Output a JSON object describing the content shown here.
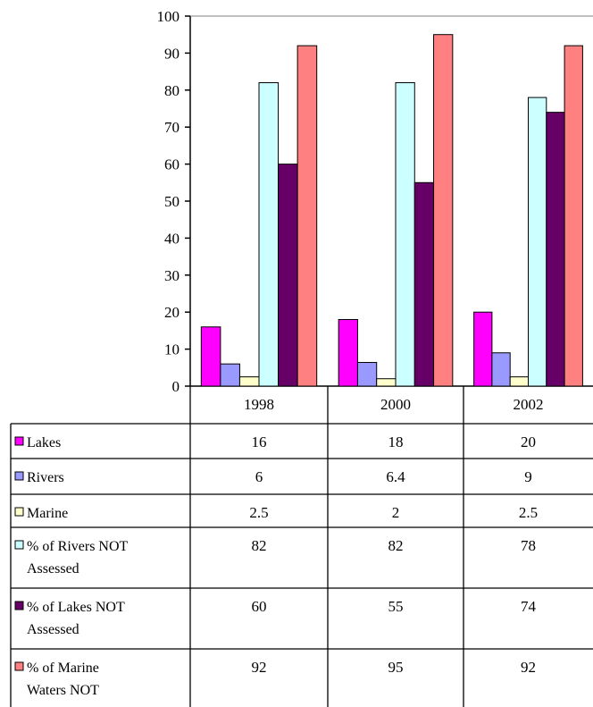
{
  "chart_data": {
    "type": "bar",
    "categories": [
      "1998",
      "2000",
      "2002"
    ],
    "ylim": [
      0,
      100
    ],
    "yticks": [
      0,
      10,
      20,
      30,
      40,
      50,
      60,
      70,
      80,
      90,
      100
    ],
    "grid": false,
    "legend_placement": "data-table-left",
    "series": [
      {
        "name": "Lakes",
        "color": "#ff00ff",
        "values": [
          16,
          18,
          20
        ],
        "labels": [
          "16",
          "18",
          "20"
        ]
      },
      {
        "name": "Rivers",
        "color": "#9999ff",
        "values": [
          6,
          6.4,
          9
        ],
        "labels": [
          "6",
          "6.4",
          "9"
        ]
      },
      {
        "name": "Marine",
        "color": "#ffffcc",
        "values": [
          2.5,
          2,
          2.5
        ],
        "labels": [
          "2.5",
          "2",
          "2.5"
        ]
      },
      {
        "name": "% of Rivers NOT Assessed",
        "name_lines": [
          "% of Rivers NOT",
          "Assessed"
        ],
        "color": "#ccffff",
        "values": [
          82,
          82,
          78
        ],
        "labels": [
          "82",
          "82",
          "78"
        ]
      },
      {
        "name": "% of Lakes NOT Assessed",
        "name_lines": [
          "% of Lakes NOT",
          "Assessed"
        ],
        "color": "#660066",
        "values": [
          60,
          55,
          74
        ],
        "labels": [
          "60",
          "55",
          "74"
        ]
      },
      {
        "name": "% of Marine Waters NOT",
        "name_lines": [
          "% of Marine",
          "Waters NOT"
        ],
        "color": "#ff8080",
        "values": [
          92,
          95,
          92
        ],
        "labels": [
          "92",
          "95",
          "92"
        ]
      }
    ]
  }
}
